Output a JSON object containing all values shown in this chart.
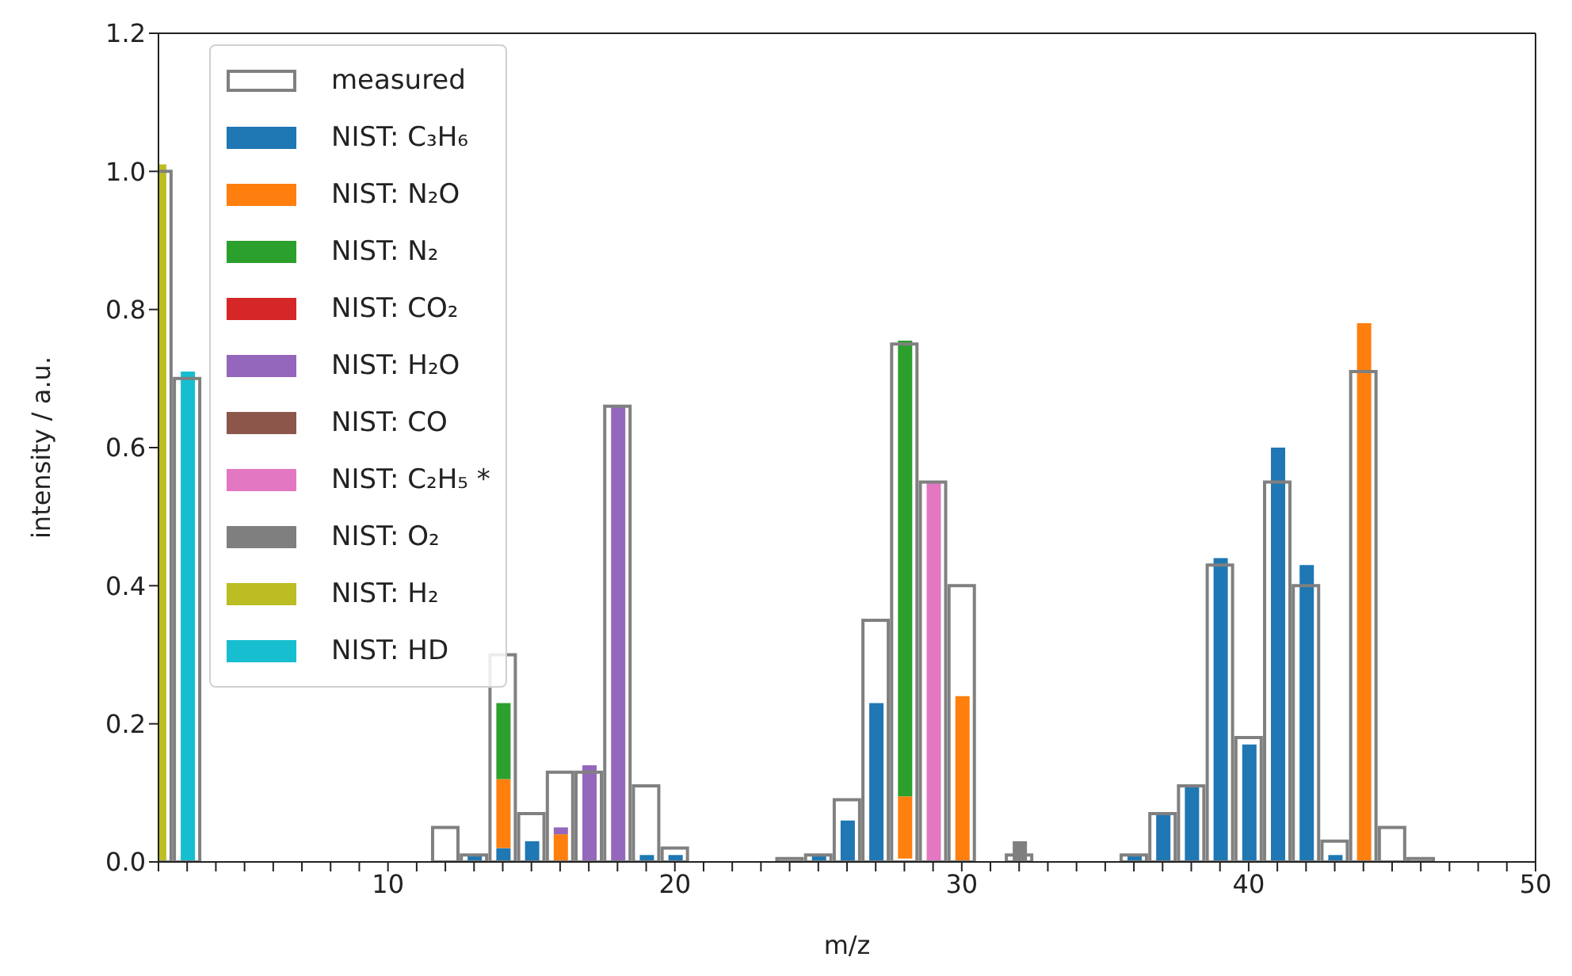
{
  "chart_data": {
    "type": "bar",
    "xlabel": "m/z",
    "ylabel": "intensity / a.u.",
    "x": [
      2,
      3,
      12,
      13,
      14,
      15,
      16,
      17,
      18,
      19,
      20,
      24,
      25,
      26,
      27,
      28,
      29,
      30,
      32,
      36,
      37,
      38,
      39,
      40,
      41,
      42,
      43,
      44,
      45,
      46
    ],
    "series": [
      {
        "name": "measured",
        "color": "#808080",
        "values": [
          1.0,
          0.7,
          0.05,
          0.01,
          0.3,
          0.07,
          0.13,
          0.13,
          0.66,
          0.11,
          0.02,
          0.005,
          0.01,
          0.09,
          0.35,
          0.75,
          0.55,
          0.4,
          0.01,
          0.01,
          0.07,
          0.11,
          0.43,
          0.18,
          0.55,
          0.4,
          0.03,
          0.71,
          0.05,
          0.005
        ]
      },
      {
        "name": "NIST: C₃H₆",
        "color": "#1f77b4",
        "values": [
          null,
          null,
          null,
          0.01,
          0.02,
          0.03,
          null,
          null,
          null,
          0.01,
          0.01,
          null,
          0.01,
          0.06,
          0.23,
          null,
          null,
          null,
          null,
          0.01,
          0.07,
          0.11,
          0.44,
          0.17,
          0.6,
          0.43,
          0.01,
          null,
          null,
          null
        ],
        "base": [
          null,
          null,
          null,
          0,
          0,
          0,
          null,
          null,
          null,
          0,
          0,
          null,
          0,
          0,
          0,
          null,
          null,
          null,
          null,
          0,
          0,
          0,
          0,
          0,
          0,
          0,
          0,
          null,
          null,
          null
        ]
      },
      {
        "name": "NIST: N₂O",
        "color": "#ff7f0e",
        "values": [
          null,
          null,
          null,
          null,
          0.1,
          null,
          0.04,
          null,
          null,
          null,
          null,
          null,
          null,
          null,
          null,
          0.09,
          null,
          0.24,
          null,
          null,
          null,
          null,
          null,
          null,
          null,
          null,
          null,
          0.78,
          null,
          null
        ],
        "base": [
          null,
          null,
          null,
          null,
          0.02,
          null,
          0,
          null,
          null,
          null,
          null,
          null,
          null,
          null,
          null,
          0.005,
          null,
          0,
          null,
          null,
          null,
          null,
          null,
          null,
          null,
          null,
          null,
          0,
          null,
          null
        ]
      },
      {
        "name": "NIST: N₂",
        "color": "#2ca02c",
        "values": [
          null,
          null,
          null,
          null,
          0.11,
          null,
          null,
          null,
          null,
          null,
          null,
          null,
          null,
          null,
          null,
          0.66,
          null,
          null,
          null,
          null,
          null,
          null,
          null,
          null,
          null,
          null,
          null,
          null,
          null,
          null
        ],
        "base": [
          null,
          null,
          null,
          null,
          0.12,
          null,
          null,
          null,
          null,
          null,
          null,
          null,
          null,
          null,
          null,
          0.095,
          null,
          null,
          null,
          null,
          null,
          null,
          null,
          null,
          null,
          null,
          null,
          null,
          null,
          null
        ]
      },
      {
        "name": "NIST: CO₂",
        "color": "#d62728",
        "values": [
          null,
          null,
          null,
          null,
          null,
          null,
          null,
          null,
          null,
          null,
          null,
          null,
          null,
          null,
          null,
          null,
          null,
          null,
          null,
          null,
          null,
          null,
          null,
          null,
          null,
          null,
          null,
          null,
          null,
          null
        ],
        "base": [
          null,
          null,
          null,
          null,
          null,
          null,
          null,
          null,
          null,
          null,
          null,
          null,
          null,
          null,
          null,
          null,
          null,
          null,
          null,
          null,
          null,
          null,
          null,
          null,
          null,
          null,
          null,
          null,
          null,
          null
        ]
      },
      {
        "name": "NIST: H₂O",
        "color": "#9467bd",
        "values": [
          null,
          null,
          null,
          null,
          null,
          null,
          0.01,
          0.14,
          0.66,
          null,
          null,
          null,
          null,
          null,
          null,
          null,
          null,
          null,
          null,
          null,
          null,
          null,
          null,
          null,
          null,
          null,
          null,
          null,
          null,
          null
        ],
        "base": [
          null,
          null,
          null,
          null,
          null,
          null,
          0.04,
          0,
          0,
          null,
          null,
          null,
          null,
          null,
          null,
          null,
          null,
          null,
          null,
          null,
          null,
          null,
          null,
          null,
          null,
          null,
          null,
          null,
          null,
          null
        ]
      },
      {
        "name": "NIST: CO",
        "color": "#8c564b",
        "values": [
          null,
          null,
          null,
          null,
          null,
          null,
          null,
          null,
          null,
          null,
          null,
          null,
          null,
          null,
          null,
          null,
          null,
          null,
          null,
          null,
          null,
          null,
          null,
          null,
          null,
          null,
          null,
          null,
          null,
          null
        ],
        "base": [
          null,
          null,
          null,
          null,
          null,
          null,
          null,
          null,
          null,
          null,
          null,
          null,
          null,
          null,
          null,
          null,
          null,
          null,
          null,
          null,
          null,
          null,
          null,
          null,
          null,
          null,
          null,
          null,
          null,
          null
        ]
      },
      {
        "name": "NIST: C₂H₅ *",
        "color": "#e377c2",
        "values": [
          null,
          null,
          null,
          null,
          null,
          null,
          null,
          null,
          null,
          null,
          null,
          null,
          null,
          null,
          null,
          null,
          0.55,
          null,
          null,
          null,
          null,
          null,
          null,
          null,
          null,
          null,
          null,
          null,
          null,
          null
        ],
        "base": [
          null,
          null,
          null,
          null,
          null,
          null,
          null,
          null,
          null,
          null,
          null,
          null,
          null,
          null,
          null,
          null,
          0,
          null,
          null,
          null,
          null,
          null,
          null,
          null,
          null,
          null,
          null,
          null,
          null,
          null
        ]
      },
      {
        "name": "NIST: O₂",
        "color": "#7f7f7f",
        "values": [
          null,
          null,
          null,
          null,
          null,
          null,
          null,
          null,
          null,
          null,
          null,
          null,
          null,
          null,
          null,
          null,
          null,
          null,
          0.03,
          null,
          null,
          null,
          null,
          null,
          null,
          null,
          null,
          null,
          null,
          null
        ],
        "base": [
          null,
          null,
          null,
          null,
          null,
          null,
          null,
          null,
          null,
          null,
          null,
          null,
          null,
          null,
          null,
          null,
          null,
          null,
          0,
          null,
          null,
          null,
          null,
          null,
          null,
          null,
          null,
          null,
          null,
          null
        ]
      },
      {
        "name": "NIST: H₂",
        "color": "#bcbd22",
        "values": [
          1.01,
          null,
          null,
          null,
          null,
          null,
          null,
          null,
          null,
          null,
          null,
          null,
          null,
          null,
          null,
          null,
          null,
          null,
          null,
          null,
          null,
          null,
          null,
          null,
          null,
          null,
          null,
          null,
          null,
          null
        ],
        "base": [
          0,
          null,
          null,
          null,
          null,
          null,
          null,
          null,
          null,
          null,
          null,
          null,
          null,
          null,
          null,
          null,
          null,
          null,
          null,
          null,
          null,
          null,
          null,
          null,
          null,
          null,
          null,
          null,
          null,
          null
        ]
      },
      {
        "name": "NIST: HD",
        "color": "#17becf",
        "values": [
          null,
          0.71,
          null,
          null,
          null,
          null,
          null,
          null,
          null,
          null,
          null,
          null,
          null,
          null,
          null,
          null,
          null,
          null,
          null,
          null,
          null,
          null,
          null,
          null,
          null,
          null,
          null,
          null,
          null,
          null
        ],
        "base": [
          null,
          0,
          null,
          null,
          null,
          null,
          null,
          null,
          null,
          null,
          null,
          null,
          null,
          null,
          null,
          null,
          null,
          null,
          null,
          null,
          null,
          null,
          null,
          null,
          null,
          null,
          null,
          null,
          null,
          null
        ]
      }
    ],
    "xlim": [
      2,
      50
    ],
    "xticks": [
      {
        "value": 2,
        "label": null
      },
      {
        "value": 3,
        "label": null
      },
      {
        "value": 4,
        "label": null
      },
      {
        "value": 5,
        "label": null
      },
      {
        "value": 6,
        "label": null
      },
      {
        "value": 7,
        "label": null
      },
      {
        "value": 8,
        "label": null
      },
      {
        "value": 9,
        "label": null
      },
      10,
      {
        "value": 11,
        "label": null
      },
      {
        "value": 12,
        "label": null
      },
      {
        "value": 13,
        "label": null
      },
      {
        "value": 14,
        "label": null
      },
      {
        "value": 15,
        "label": null
      },
      {
        "value": 16,
        "label": null
      },
      {
        "value": 17,
        "label": null
      },
      {
        "value": 18,
        "label": null
      },
      {
        "value": 19,
        "label": null
      },
      20,
      {
        "value": 21,
        "label": null
      },
      {
        "value": 22,
        "label": null
      },
      {
        "value": 23,
        "label": null
      },
      {
        "value": 24,
        "label": null
      },
      {
        "value": 25,
        "label": null
      },
      {
        "value": 26,
        "label": null
      },
      {
        "value": 27,
        "label": null
      },
      {
        "value": 28,
        "label": null
      },
      {
        "value": 29,
        "label": null
      },
      30,
      {
        "value": 31,
        "label": null
      },
      {
        "value": 32,
        "label": null
      },
      {
        "value": 33,
        "label": null
      },
      {
        "value": 34,
        "label": null
      },
      {
        "value": 35,
        "label": null
      },
      {
        "value": 36,
        "label": null
      },
      {
        "value": 37,
        "label": null
      },
      {
        "value": 38,
        "label": null
      },
      {
        "value": 39,
        "label": null
      },
      40,
      {
        "value": 41,
        "label": null
      },
      {
        "value": 42,
        "label": null
      },
      {
        "value": 43,
        "label": null
      },
      {
        "value": 44,
        "label": null
      },
      {
        "value": 45,
        "label": null
      },
      {
        "value": 46,
        "label": null
      },
      {
        "value": 47,
        "label": null
      },
      {
        "value": 48,
        "label": null
      },
      {
        "value": 49,
        "label": null
      },
      50
    ],
    "ylim": [
      0,
      1.2
    ],
    "yticks": [
      {
        "value": 0,
        "label": "0.0"
      },
      {
        "value": 0.2,
        "label": "0.2"
      },
      {
        "value": 0.4,
        "label": "0.4"
      },
      {
        "value": 0.6,
        "label": "0.6"
      },
      {
        "value": 0.8,
        "label": "0.8"
      },
      {
        "value": 1.0,
        "label": "1.0"
      },
      {
        "value": 1.2,
        "label": "1.2"
      }
    ],
    "grid": false,
    "legend": "top left"
  }
}
